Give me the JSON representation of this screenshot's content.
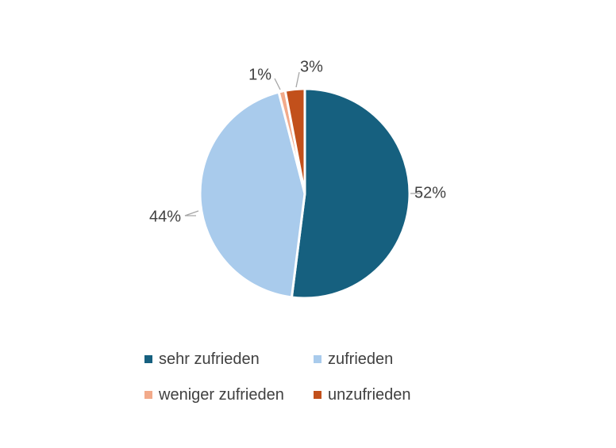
{
  "chart_data": {
    "type": "pie",
    "title": "",
    "categories": [
      "sehr zufrieden",
      "zufrieden",
      "weniger zufrieden",
      "unzufrieden"
    ],
    "values": [
      52,
      44,
      1,
      3
    ],
    "data_labels": [
      "52%",
      "44%",
      "1%",
      "3%"
    ],
    "colors": [
      "#16607f",
      "#a9cbec",
      "#f2aa8a",
      "#c2501b"
    ],
    "start_angle_deg": 0,
    "direction": "clockwise",
    "legend_position": "bottom"
  },
  "legend": {
    "items": [
      {
        "label": "sehr zufrieden",
        "color": "#16607f"
      },
      {
        "label": "zufrieden",
        "color": "#a9cbec"
      },
      {
        "label": "weniger zufrieden",
        "color": "#f2aa8a"
      },
      {
        "label": "unzufrieden",
        "color": "#c2501b"
      }
    ]
  }
}
